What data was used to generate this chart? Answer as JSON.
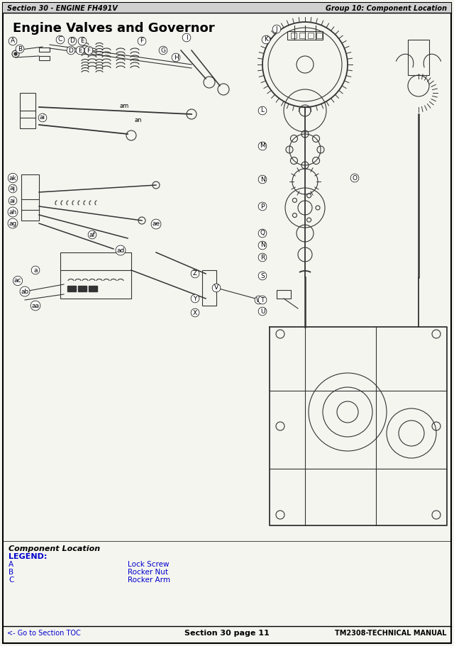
{
  "page_bg": "#f5f5f0",
  "border_color": "#000000",
  "header_left": "Section 30 - ENGINE FH491V",
  "header_right": "Group 10: Component Location",
  "title": "Engine Valves and Governor",
  "footer_left": "<- Go to Section TOC",
  "footer_center": "Section 30 page 11",
  "footer_right": "TM2308-TECHNICAL MANUAL",
  "section_label": "Component Location",
  "legend_title": "LEGEND:",
  "legend_items": [
    [
      "A",
      "Lock Screw"
    ],
    [
      "B",
      "Rocker Nut"
    ],
    [
      "C",
      "Rocker Arm"
    ]
  ],
  "blue_color": "#0000cc",
  "dark_color": "#222222",
  "header_bg": "#d0d0d0",
  "fig_width": 6.4,
  "fig_height": 9.11
}
